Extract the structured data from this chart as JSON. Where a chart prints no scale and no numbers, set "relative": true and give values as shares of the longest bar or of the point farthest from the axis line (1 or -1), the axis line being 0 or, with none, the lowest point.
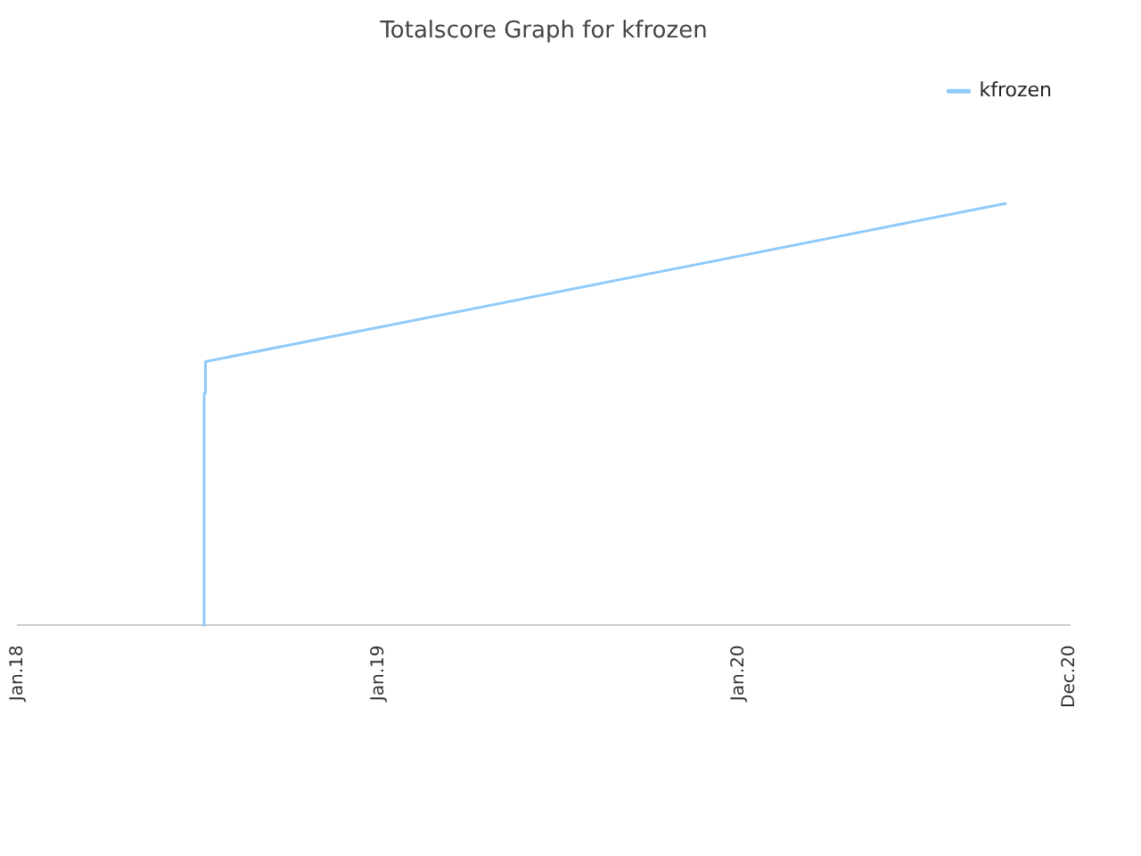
{
  "chart_data": {
    "type": "line",
    "title": "Totalscore Graph for kfrozen",
    "relative": true,
    "xlim": [
      "2018-01-01",
      "2020-12-01"
    ],
    "xticks": [
      {
        "value": "2018-01-01",
        "label": "Jan.18"
      },
      {
        "value": "2019-01-01",
        "label": "Jan.19"
      },
      {
        "value": "2020-01-01",
        "label": "Jan.20"
      },
      {
        "value": "2020-12-01",
        "label": "Dec.20"
      }
    ],
    "legend": "top right",
    "marker": "none",
    "series": [
      {
        "name": "kfrozen",
        "color": "#90caf9",
        "x": [
          "2018-07-08",
          "2018-07-08",
          "2018-07-09",
          "2018-07-09",
          "2018-07-10",
          "2018-07-10",
          "2020-09-28"
        ],
        "values": [
          0,
          0.41,
          0.41,
          0.55,
          0.55,
          0.625,
          1
        ]
      }
    ]
  }
}
